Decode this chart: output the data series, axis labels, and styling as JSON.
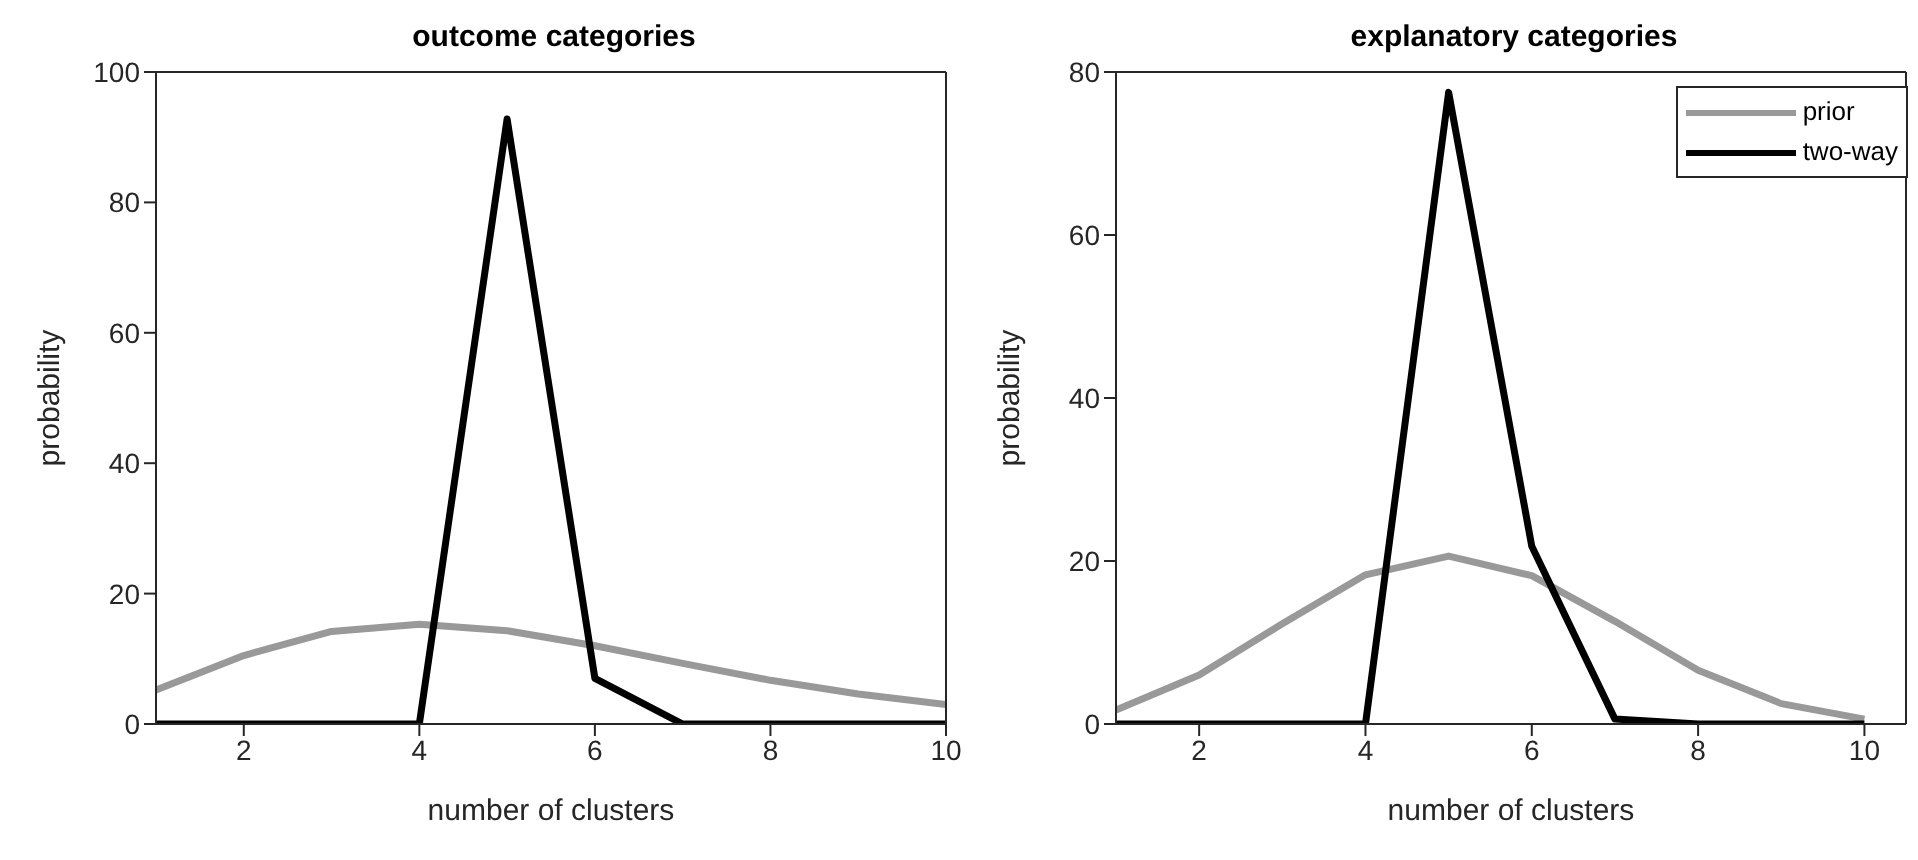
{
  "chart_data": [
    {
      "type": "line",
      "title": "outcome categories",
      "xlabel": "number of clusters",
      "ylabel": "probability",
      "x": [
        1,
        2,
        3,
        4,
        5,
        6,
        7,
        8,
        9,
        10
      ],
      "series": [
        {
          "color": "#999999",
          "values": [
            5.2,
            10.5,
            14.2,
            15.3,
            14.3,
            12,
            9.3,
            6.7,
            4.6,
            3
          ]
        },
        {
          "color": "#000000",
          "values": [
            0,
            0,
            0,
            0,
            92.8,
            7,
            0,
            0,
            0,
            0
          ]
        }
      ],
      "xlim": [
        1,
        10
      ],
      "xticks": [
        2,
        4,
        6,
        8,
        10
      ],
      "ylim": [
        0,
        100
      ],
      "yticks": [
        0,
        20,
        40,
        60,
        80,
        100
      ],
      "grid": false,
      "legend": false,
      "marker": "none",
      "line_style": "solid"
    },
    {
      "type": "line",
      "title": "explanatory categories",
      "xlabel": "number of clusters",
      "ylabel": "probability",
      "x": [
        1,
        2,
        3,
        4,
        5,
        6,
        7,
        8,
        9,
        10
      ],
      "series": [
        {
          "name": "prior",
          "color": "#999999",
          "values": [
            1.7,
            6,
            12.3,
            18.3,
            20.6,
            18.2,
            12.6,
            6.6,
            2.5,
            0.6
          ]
        },
        {
          "name": "two-way",
          "color": "#000000",
          "values": [
            0,
            0,
            0,
            0,
            77.5,
            21.8,
            0.6,
            0,
            0,
            0
          ]
        }
      ],
      "xlim": [
        1,
        10.5
      ],
      "xticks": [
        2,
        4,
        6,
        8,
        10
      ],
      "ylim": [
        0,
        80
      ],
      "yticks": [
        0,
        20,
        40,
        60,
        80
      ],
      "grid": false,
      "legend": "top right",
      "marker": "none",
      "line_style": "solid"
    }
  ]
}
